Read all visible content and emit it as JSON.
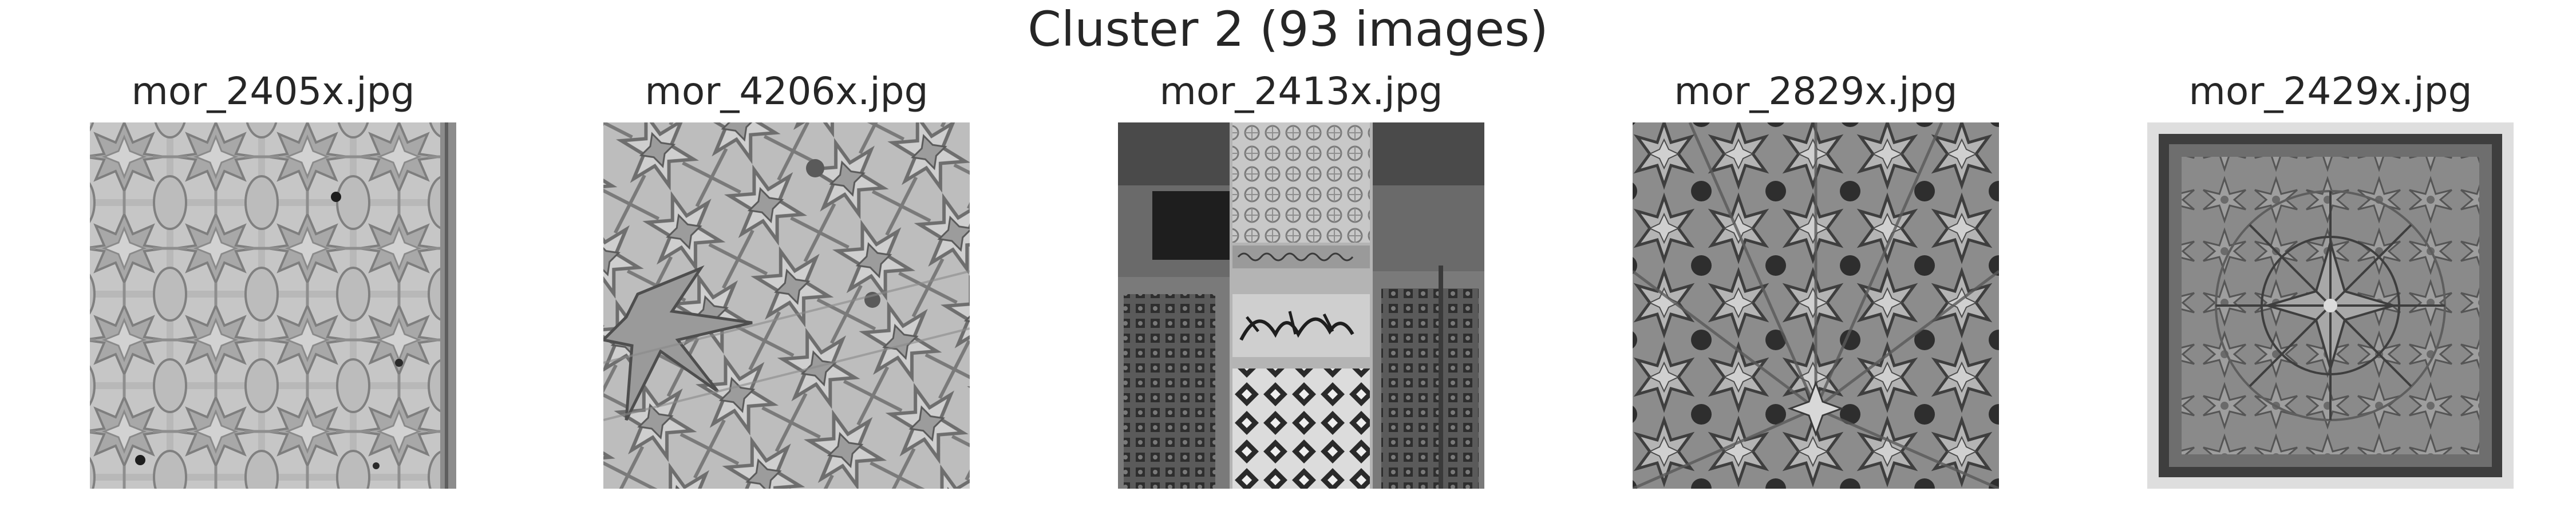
{
  "figure": {
    "title": "Cluster 2 (93 images)"
  },
  "panels": [
    {
      "filename": "mor_2405x.jpg",
      "image": "carved stucco geometric star and lobed medallion pattern (grayscale)"
    },
    {
      "filename": "mor_4206x.jpg",
      "image": "carved wooden ceiling with interlaced star polygons (grayscale)"
    },
    {
      "filename": "mor_2413x.jpg",
      "image": "courtyard pillar with stucco calligraphy band, zellige tilework and mashrabiya screens (grayscale)"
    },
    {
      "filename": "mor_2829x.jpg",
      "image": "wooden ceiling with radiating star rosettes (grayscale)"
    },
    {
      "filename": "mor_2429x.jpg",
      "image": "framed square carved ceiling panel with central star rosette (grayscale)"
    }
  ]
}
